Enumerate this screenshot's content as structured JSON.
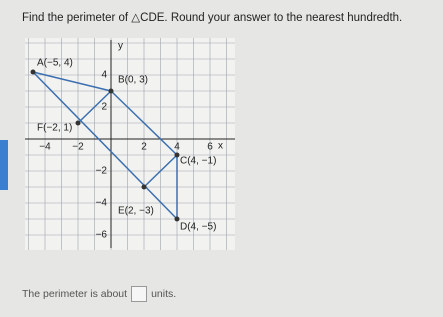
{
  "question": "Find the perimeter of △CDE.  Round your answer to the nearest hundredth.",
  "graph": {
    "x_axis_label": "x",
    "y_axis_label": "y",
    "x_tick_labels": [
      "−4",
      "−2",
      "2",
      "4",
      "6"
    ],
    "y_tick_labels": [
      "4",
      "2",
      "−2",
      "−4",
      "−6"
    ],
    "points": [
      "A(−5, 4)",
      "B(0, 3)",
      "F(−2, 1)",
      "C(4, −1)",
      "E(2, −3)",
      "D(4, −5)"
    ]
  },
  "answer": {
    "prefix": "The perimeter is about",
    "suffix": "units."
  }
}
